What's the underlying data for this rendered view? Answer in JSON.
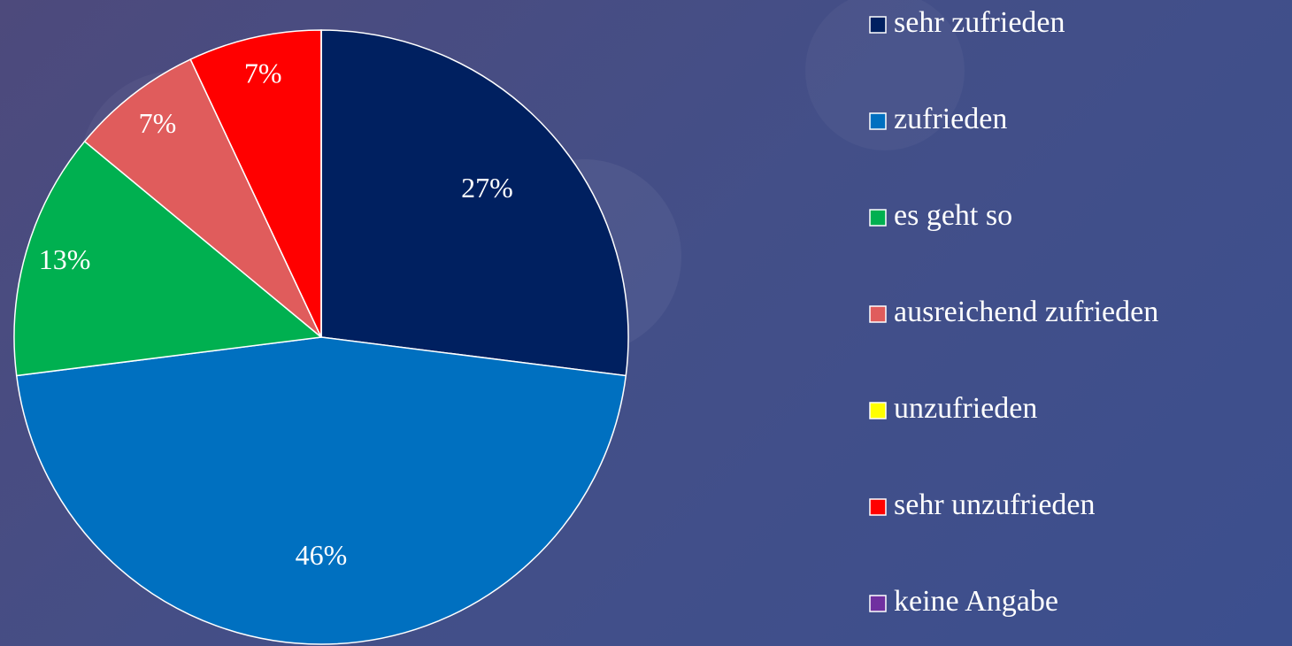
{
  "chart_data": {
    "type": "pie",
    "categories": [
      "sehr zufrieden",
      "zufrieden",
      "es geht so",
      "ausreichend zufrieden",
      "unzufrieden",
      "sehr unzufrieden",
      "keine Angabe"
    ],
    "values": [
      27,
      46,
      13,
      7,
      0,
      7,
      0
    ],
    "value_labels": [
      "27%",
      "46%",
      "13%",
      "7%",
      null,
      "7%",
      null
    ],
    "colors": [
      "#002060",
      "#0070c0",
      "#00b050",
      "#e05c5c",
      "#ffff00",
      "#ff0000",
      "#7030a0"
    ],
    "legend": "right"
  }
}
